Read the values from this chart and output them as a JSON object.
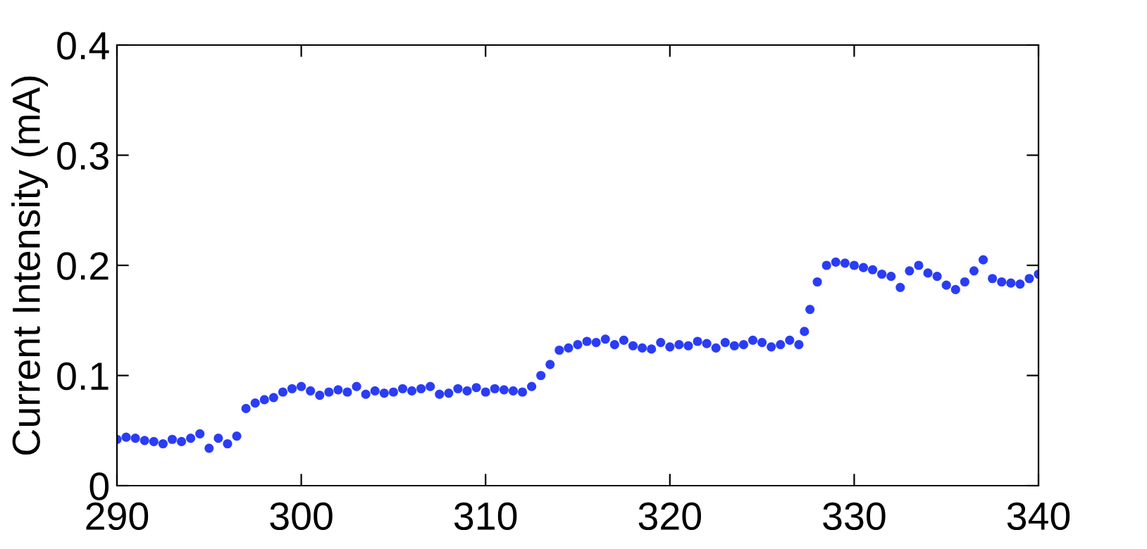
{
  "chart_data": {
    "type": "scatter",
    "ylabel": "Current Intensity (mA)",
    "xlim": [
      290,
      340
    ],
    "ylim": [
      0,
      0.4
    ],
    "xticks": [
      290,
      300,
      310,
      320,
      330,
      340
    ],
    "yticks": [
      0,
      0.1,
      0.2,
      0.3,
      0.4
    ],
    "grid": false,
    "marker": "circle",
    "series": [
      {
        "color": "#2a3df5",
        "x": [
          290,
          290.5,
          291,
          291.5,
          292,
          292.5,
          293,
          293.5,
          294,
          294.5,
          295,
          295.5,
          296,
          296.5,
          297,
          297.5,
          298,
          298.5,
          299,
          299.5,
          300,
          300.5,
          301,
          301.5,
          302,
          302.5,
          303,
          303.5,
          304,
          304.5,
          305,
          305.5,
          306,
          306.5,
          307,
          307.5,
          308,
          308.5,
          309,
          309.5,
          310,
          310.5,
          311,
          311.5,
          312,
          312.5,
          313,
          313.5,
          314,
          314.5,
          315,
          315.5,
          316,
          316.5,
          317,
          317.5,
          318,
          318.5,
          319,
          319.5,
          320,
          320.5,
          321,
          321.5,
          322,
          322.5,
          323,
          323.5,
          324,
          324.5,
          325,
          325.5,
          326,
          326.5,
          327,
          327.3,
          327.6,
          328,
          328.5,
          329,
          329.5,
          330,
          330.5,
          331,
          331.5,
          332,
          332.5,
          333,
          333.5,
          334,
          334.5,
          335,
          335.5,
          336,
          336.5,
          337,
          337.5,
          338,
          338.5,
          339,
          339.5,
          340
        ],
        "values": [
          0.042,
          0.044,
          0.043,
          0.041,
          0.04,
          0.038,
          0.042,
          0.04,
          0.043,
          0.047,
          0.034,
          0.043,
          0.038,
          0.045,
          0.07,
          0.075,
          0.078,
          0.08,
          0.085,
          0.088,
          0.09,
          0.086,
          0.082,
          0.085,
          0.087,
          0.085,
          0.09,
          0.083,
          0.086,
          0.084,
          0.085,
          0.088,
          0.086,
          0.088,
          0.09,
          0.083,
          0.084,
          0.088,
          0.086,
          0.089,
          0.085,
          0.088,
          0.087,
          0.086,
          0.085,
          0.09,
          0.1,
          0.11,
          0.123,
          0.125,
          0.128,
          0.131,
          0.13,
          0.133,
          0.128,
          0.132,
          0.127,
          0.125,
          0.124,
          0.13,
          0.126,
          0.128,
          0.127,
          0.131,
          0.129,
          0.125,
          0.13,
          0.127,
          0.128,
          0.132,
          0.13,
          0.126,
          0.128,
          0.132,
          0.128,
          0.14,
          0.16,
          0.185,
          0.2,
          0.203,
          0.202,
          0.2,
          0.198,
          0.196,
          0.192,
          0.19,
          0.18,
          0.195,
          0.2,
          0.193,
          0.19,
          0.182,
          0.178,
          0.185,
          0.195,
          0.205,
          0.188,
          0.185,
          0.184,
          0.183,
          0.188,
          0.192
        ]
      }
    ]
  }
}
